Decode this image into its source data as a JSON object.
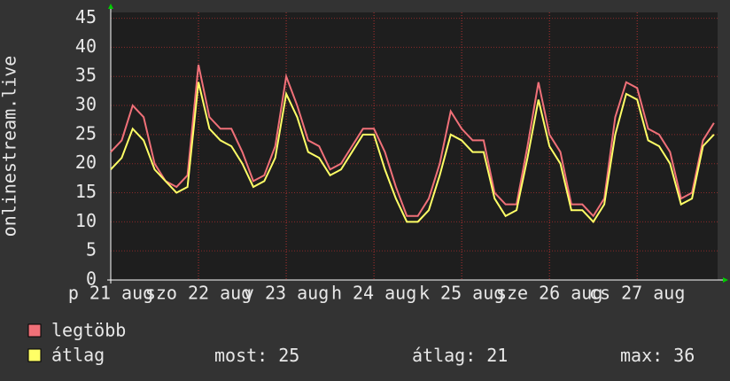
{
  "chart_data": {
    "type": "line",
    "y_label": "onlinestream.live",
    "x": [
      0,
      3,
      6,
      9,
      12,
      15,
      18,
      21,
      24,
      27,
      30,
      33,
      36,
      39,
      42,
      45,
      48,
      51,
      54,
      57,
      60,
      63,
      66,
      69,
      72,
      75,
      78,
      81,
      84,
      87,
      90,
      93,
      96,
      99,
      102,
      105,
      108,
      111,
      114,
      117,
      120,
      123,
      126,
      129,
      132,
      135,
      138,
      141,
      144,
      147,
      150,
      153,
      156,
      159,
      162,
      165
    ],
    "series": [
      {
        "name": "legtöbb",
        "color": "#f07078",
        "values": [
          22,
          24,
          30,
          28,
          20,
          17,
          16,
          18,
          37,
          28,
          26,
          26,
          22,
          17,
          18,
          23,
          35,
          30,
          24,
          23,
          19,
          20,
          23,
          26,
          26,
          22,
          16,
          11,
          11,
          14,
          20,
          29,
          26,
          24,
          24,
          15,
          13,
          13,
          23,
          34,
          25,
          22,
          13,
          13,
          11,
          14,
          28,
          34,
          33,
          26,
          25,
          22,
          14,
          15,
          24,
          27
        ]
      },
      {
        "name": "átlag",
        "color": "#ffff66",
        "values": [
          19,
          21,
          26,
          24,
          19,
          17,
          15,
          16,
          34,
          26,
          24,
          23,
          20,
          16,
          17,
          21,
          32,
          28,
          22,
          21,
          18,
          19,
          22,
          25,
          25,
          19,
          14,
          10,
          10,
          12,
          18,
          25,
          24,
          22,
          22,
          14,
          11,
          12,
          21,
          31,
          23,
          20,
          12,
          12,
          10,
          13,
          25,
          32,
          31,
          24,
          23,
          20,
          13,
          14,
          23,
          25
        ]
      }
    ],
    "xlim": [
      0,
      166
    ],
    "xticks": [
      {
        "value": 0,
        "label": "p 21 aug"
      },
      {
        "value": 24,
        "label": "szo 22 aug"
      },
      {
        "value": 48,
        "label": "v 23 aug"
      },
      {
        "value": 72,
        "label": "h 24 aug"
      },
      {
        "value": 96,
        "label": "k 25 aug"
      },
      {
        "value": 120,
        "label": "sze 26 aug"
      },
      {
        "value": 144,
        "label": "cs 27 aug"
      }
    ],
    "ylim": [
      0,
      46
    ],
    "yticks": [
      0,
      5,
      10,
      15,
      20,
      25,
      30,
      35,
      40,
      45
    ],
    "grid": true,
    "stats": [
      {
        "label": "most:",
        "value": 25
      },
      {
        "label": "átlag:",
        "value": 21
      },
      {
        "label": "max:",
        "value": 36
      }
    ]
  }
}
